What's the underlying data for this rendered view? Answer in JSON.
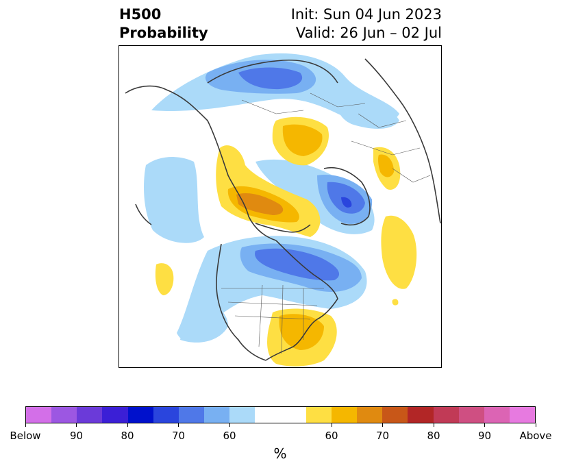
{
  "title": {
    "left_line1": "H500",
    "left_line2": "Probability",
    "right_line1": "Init: Sun 04 Jun 2023",
    "right_line2": "Valid: 26 Jun – 02 Jul"
  },
  "colorbar": {
    "label": "%",
    "colors": [
      "#d36fe8",
      "#9c57e2",
      "#6b3ad9",
      "#3b1fd6",
      "#0011cc",
      "#2a45dd",
      "#4f78e8",
      "#78b0f2",
      "#abdaf9",
      "#ffffff",
      "#ffffff",
      "#fedf43",
      "#f5b700",
      "#e08a10",
      "#c85718",
      "#b22626",
      "#c13a56",
      "#cf4f82",
      "#dc64b4",
      "#e77ae0"
    ],
    "ticks": [
      "Below",
      "90",
      "80",
      "70",
      "60",
      "60",
      "70",
      "80",
      "90",
      "Above"
    ]
  },
  "map": {
    "blue_light": "#abdaf9",
    "blue_mid": "#78b0f2",
    "blue_dark": "#4f78e8",
    "blue_darker": "#2a45dd",
    "yellow_light": "#fedf43",
    "yellow_mid": "#f5b700",
    "orange": "#e08a10",
    "coast": "#3a3a3a"
  }
}
